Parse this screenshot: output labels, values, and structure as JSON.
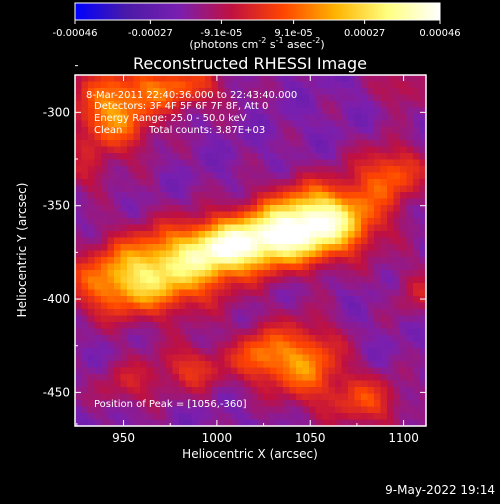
{
  "chart_data": {
    "type": "heatmap",
    "title": "Reconstructed RHESSI Image",
    "xlabel": "Heliocentric X (arcsec)",
    "ylabel": "Heliocentric Y (arcsec)",
    "xlim": [
      924,
      1112
    ],
    "ylim": [
      -468,
      -280
    ],
    "xticks": [
      950,
      1000,
      1050,
      1100
    ],
    "yticks": [
      -300,
      -350,
      -400,
      -450
    ],
    "colorbar": {
      "range": [
        -0.00046,
        0.00046
      ],
      "ticks": [
        "-0.00046",
        "-0.00027",
        "-9.1e-05",
        "9.1e-05",
        "0.00027",
        "0.00046"
      ],
      "colors": [
        "#0000ff",
        "#4b1aa8",
        "#7a1fb0",
        "#c01040",
        "#ff4500",
        "#ffb400",
        "#ffff80",
        "#ffffff"
      ]
    },
    "unit_label": {
      "parts": [
        "(photons cm",
        "-2",
        " s",
        "-1",
        " asec",
        "-2",
        ")"
      ]
    },
    "annotations": {
      "time": "8-Mar-2011 22:40:36.000 to 22:43:40.000",
      "detectors": "Detectors: 3F 4F 5F 6F 7F 8F, Att 0",
      "energy": "Energy Range: 25.0 - 50.0 keV",
      "algorithm": "Clean",
      "counts": "Total counts: 3.87E+03",
      "peak": "Position of Peak = [1056,-360]"
    },
    "peak_position": [
      1056,
      -360
    ],
    "sources": [
      {
        "x": 1056,
        "y": -358,
        "sx": 20,
        "sy": 13,
        "amp": 1.0
      },
      {
        "x": 1028,
        "y": -368,
        "sx": 18,
        "sy": 11,
        "amp": 0.72
      },
      {
        "x": 1003,
        "y": -373,
        "sx": 15,
        "sy": 10,
        "amp": 0.62
      },
      {
        "x": 976,
        "y": -383,
        "sx": 22,
        "sy": 15,
        "amp": 0.68
      },
      {
        "x": 946,
        "y": -392,
        "sx": 20,
        "sy": 13,
        "amp": 0.48
      },
      {
        "x": 1093,
        "y": -333,
        "sx": 13,
        "sy": 11,
        "amp": 0.46
      },
      {
        "x": 944,
        "y": -300,
        "sx": 16,
        "sy": 16,
        "amp": 0.58
      },
      {
        "x": 978,
        "y": -286,
        "sx": 18,
        "sy": 9,
        "amp": 0.44
      },
      {
        "x": 1047,
        "y": -434,
        "sx": 14,
        "sy": 15,
        "amp": 0.56
      },
      {
        "x": 1023,
        "y": -430,
        "sx": 10,
        "sy": 10,
        "amp": 0.42
      },
      {
        "x": 987,
        "y": -437,
        "sx": 14,
        "sy": 9,
        "amp": 0.34
      },
      {
        "x": 1080,
        "y": -455,
        "sx": 14,
        "sy": 10,
        "amp": 0.38
      },
      {
        "x": 952,
        "y": -446,
        "sx": 12,
        "sy": 9,
        "amp": 0.24
      },
      {
        "x": 1108,
        "y": -396,
        "sx": 10,
        "sy": 10,
        "amp": 0.22
      },
      {
        "x": 1100,
        "y": -287,
        "sx": 10,
        "sy": 8,
        "amp": 0.24
      },
      {
        "x": 930,
        "y": -333,
        "sx": 8,
        "sy": 8,
        "amp": 0.18
      }
    ],
    "grid": false,
    "legend": "none"
  },
  "footer": {
    "timestamp": "9-May-2022 19:14"
  }
}
